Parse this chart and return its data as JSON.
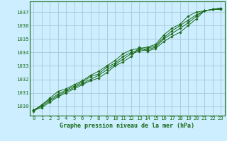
{
  "title": "Graphe pression niveau de la mer (hPa)",
  "bg_color": "#cceeff",
  "grid_color": "#aaccdd",
  "line_color": "#1a6b1a",
  "marker_color": "#1a6b1a",
  "xlim": [
    -0.5,
    23.5
  ],
  "ylim": [
    1029.3,
    1037.8
  ],
  "yticks": [
    1030,
    1031,
    1032,
    1033,
    1034,
    1035,
    1036,
    1037
  ],
  "xticks": [
    0,
    1,
    2,
    3,
    4,
    5,
    6,
    7,
    8,
    9,
    10,
    11,
    12,
    13,
    14,
    15,
    16,
    17,
    18,
    19,
    20,
    21,
    22,
    23
  ],
  "lines": [
    [
      1029.7,
      1029.9,
      1030.3,
      1030.7,
      1031.0,
      1031.3,
      1031.6,
      1031.9,
      1032.1,
      1032.5,
      1033.0,
      1033.3,
      1033.7,
      1034.4,
      1034.1,
      1034.3,
      1034.8,
      1035.2,
      1035.5,
      1036.0,
      1036.5,
      1037.1,
      1037.2,
      1037.2
    ],
    [
      1029.7,
      1030.0,
      1030.4,
      1030.8,
      1031.1,
      1031.4,
      1031.7,
      1032.0,
      1032.3,
      1032.7,
      1033.1,
      1033.5,
      1033.9,
      1034.1,
      1034.2,
      1034.4,
      1035.0,
      1035.4,
      1035.8,
      1036.2,
      1036.7,
      1037.1,
      1037.2,
      1037.3
    ],
    [
      1029.7,
      1030.1,
      1030.5,
      1030.9,
      1031.2,
      1031.5,
      1031.8,
      1032.2,
      1032.4,
      1032.9,
      1033.2,
      1033.7,
      1034.0,
      1034.2,
      1034.3,
      1034.5,
      1035.1,
      1035.6,
      1036.0,
      1036.4,
      1036.8,
      1037.1,
      1037.2,
      1037.3
    ],
    [
      1029.6,
      1030.1,
      1030.6,
      1031.1,
      1031.3,
      1031.6,
      1031.9,
      1032.3,
      1032.6,
      1033.0,
      1033.4,
      1033.9,
      1034.2,
      1034.3,
      1034.4,
      1034.6,
      1035.3,
      1035.8,
      1036.1,
      1036.7,
      1037.0,
      1037.1,
      1037.2,
      1037.3
    ]
  ],
  "title_fontsize": 6.0,
  "tick_fontsize": 5.2
}
